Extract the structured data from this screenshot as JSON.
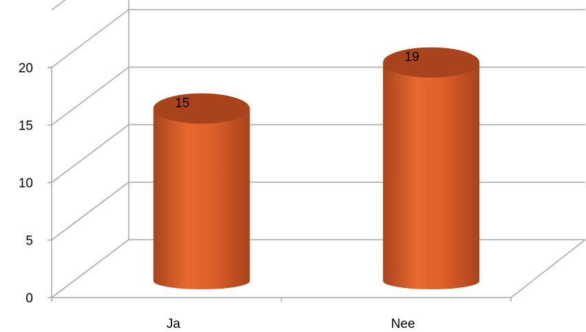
{
  "chart_data": {
    "type": "bar",
    "style": "3d-cylinder",
    "categories": [
      "Ja",
      "Nee"
    ],
    "values": [
      15,
      19
    ],
    "data_labels": [
      "15",
      "19"
    ],
    "y_ticks": [
      "0",
      "5",
      "10",
      "15",
      "20"
    ],
    "ylim": [
      0,
      25
    ],
    "grid": true,
    "legend": "none",
    "bar_color": "#e0602a",
    "bar_shadow_color": "#a8431c",
    "grid_color": "#a6a6a6"
  }
}
